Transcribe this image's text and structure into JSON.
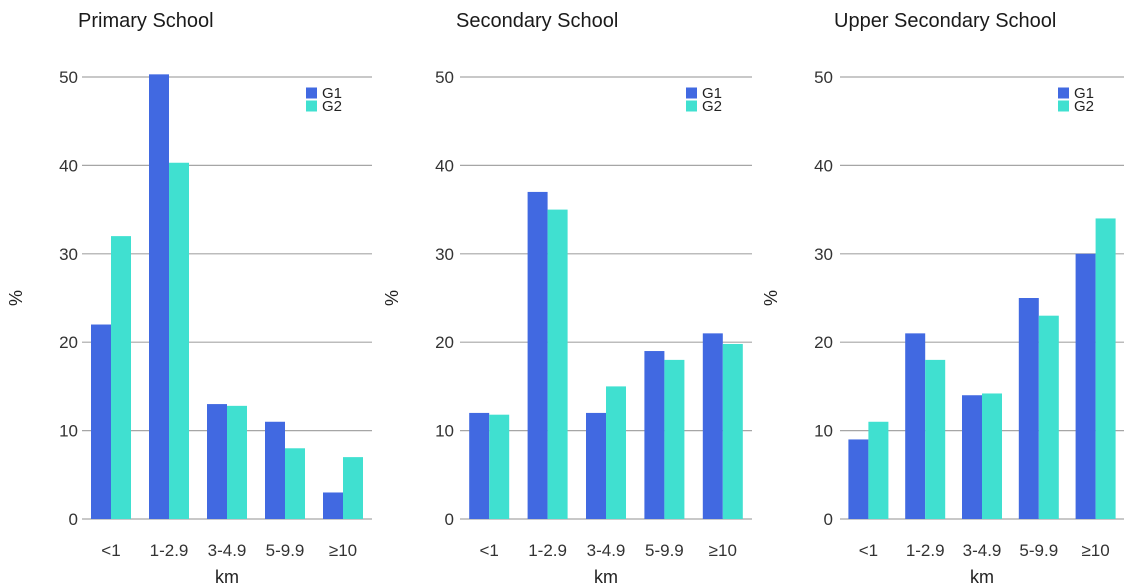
{
  "chart_data": [
    {
      "type": "bar",
      "title": "Primary School",
      "xlabel": "km",
      "ylabel": "%",
      "ylim": [
        0,
        50
      ],
      "yticks": [
        0,
        10,
        20,
        30,
        40,
        50
      ],
      "grid": true,
      "legend_position": "top-right",
      "categories": [
        "<1",
        "1-2.9",
        "3-4.9",
        "5-9.9",
        "≥10"
      ],
      "series": [
        {
          "name": "G1",
          "color": "#4169e1",
          "values": [
            22,
            50.3,
            13,
            11,
            3
          ]
        },
        {
          "name": "G2",
          "color": "#40e0d0",
          "values": [
            32,
            40.3,
            12.8,
            8,
            7
          ]
        }
      ]
    },
    {
      "type": "bar",
      "title": "Secondary School",
      "xlabel": "km",
      "ylabel": "%",
      "ylim": [
        0,
        50
      ],
      "yticks": [
        0,
        10,
        20,
        30,
        40,
        50
      ],
      "grid": true,
      "legend_position": "top-right",
      "categories": [
        "<1",
        "1-2.9",
        "3-4.9",
        "5-9.9",
        "≥10"
      ],
      "series": [
        {
          "name": "G1",
          "color": "#4169e1",
          "values": [
            12,
            37,
            12,
            19,
            21
          ]
        },
        {
          "name": "G2",
          "color": "#40e0d0",
          "values": [
            11.8,
            35,
            15,
            18,
            19.8
          ]
        }
      ]
    },
    {
      "type": "bar",
      "title": "Upper Secondary School",
      "xlabel": "km",
      "ylabel": "%",
      "ylim": [
        0,
        50
      ],
      "yticks": [
        0,
        10,
        20,
        30,
        40,
        50
      ],
      "grid": true,
      "legend_position": "top-right",
      "categories": [
        "<1",
        "1-2.9",
        "3-4.9",
        "5-9.9",
        "≥10"
      ],
      "series": [
        {
          "name": "G1",
          "color": "#4169e1",
          "values": [
            9,
            21,
            14,
            25,
            30
          ]
        },
        {
          "name": "G2",
          "color": "#40e0d0",
          "values": [
            11,
            18,
            14.2,
            23,
            34
          ]
        }
      ]
    }
  ]
}
